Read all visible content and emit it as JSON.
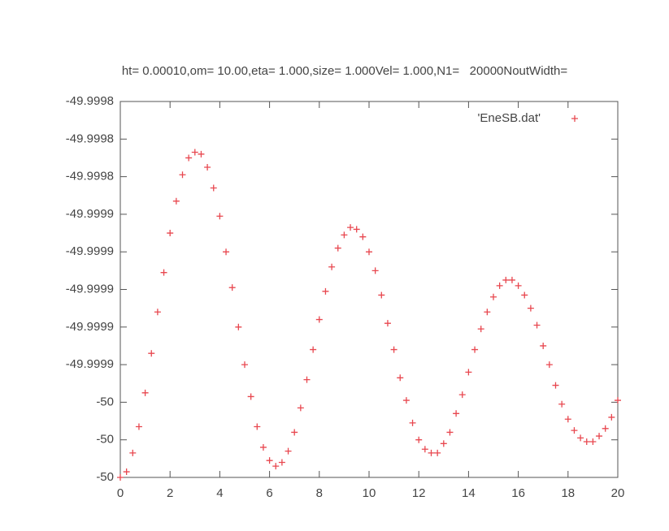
{
  "chart_data": {
    "type": "scatter",
    "title": "ht= 0.00010,om= 10.00,eta= 1.000,size= 1.000Vel= 1.000,N1=   20000NoutWidth=",
    "xlim": [
      0,
      20
    ],
    "xticks": [
      0,
      2,
      4,
      6,
      8,
      10,
      12,
      14,
      16,
      18,
      20
    ],
    "ylim": [
      -50,
      -49.9998
    ],
    "yticks": [
      -50,
      {
        "value": -49.99998,
        "label": "-50"
      },
      {
        "value": -49.99996,
        "label": "-50"
      },
      {
        "value": -49.99994,
        "label": "-49.9999"
      },
      {
        "value": -49.99992,
        "label": "-49.9999"
      },
      {
        "value": -49.9999,
        "label": "-49.9999"
      },
      {
        "value": -49.99988,
        "label": "-49.9999"
      },
      {
        "value": -49.99986,
        "label": "-49.9999"
      },
      {
        "value": -49.99984,
        "label": "-49.9998"
      },
      {
        "value": -49.99982,
        "label": "-49.9998"
      },
      -49.9998
    ],
    "legend": "upper right",
    "series": [
      {
        "name": "'EneSB.dat'",
        "color": "#e8474f",
        "marker": "+",
        "x": [
          0,
          0.25,
          0.5,
          0.75,
          1,
          1.25,
          1.5,
          1.75,
          2,
          2.25,
          2.5,
          2.75,
          3,
          3.25,
          3.5,
          3.75,
          4,
          4.25,
          4.5,
          4.75,
          5,
          5.25,
          5.5,
          5.75,
          6,
          6.25,
          6.5,
          6.75,
          7,
          7.25,
          7.5,
          7.75,
          8,
          8.25,
          8.5,
          8.75,
          9,
          9.25,
          9.5,
          9.75,
          10,
          10.25,
          10.5,
          10.75,
          11,
          11.25,
          11.5,
          11.75,
          12,
          12.25,
          12.5,
          12.75,
          13,
          13.25,
          13.5,
          13.75,
          14,
          14.25,
          14.5,
          14.75,
          15,
          15.25,
          15.5,
          15.75,
          16,
          16.25,
          16.5,
          16.75,
          17,
          17.25,
          17.5,
          17.75,
          18,
          18.25,
          18.5,
          18.75,
          19,
          19.25,
          19.5,
          19.75,
          20
        ],
        "values": [
          -50,
          -49.999997,
          -49.999987,
          -49.999973,
          -49.999955,
          -49.999934,
          -49.999912,
          -49.999891,
          -49.99987,
          -49.999853,
          -49.999839,
          -49.99983,
          -49.999827,
          -49.999828,
          -49.999835,
          -49.999846,
          -49.999861,
          -49.99988,
          -49.999899,
          -49.99992,
          -49.99994,
          -49.999957,
          -49.999973,
          -49.999984,
          -49.999991,
          -49.999994,
          -49.999992,
          -49.999986,
          -49.999976,
          -49.999963,
          -49.999948,
          -49.999932,
          -49.999916,
          -49.999901,
          -49.999888,
          -49.999878,
          -49.999871,
          -49.999867,
          -49.999868,
          -49.999872,
          -49.99988,
          -49.99989,
          -49.999903,
          -49.999918,
          -49.999932,
          -49.999947,
          -49.999959,
          -49.999971,
          -49.99998,
          -49.999985,
          -49.999987,
          -49.999987,
          -49.999982,
          -49.999976,
          -49.999966,
          -49.999956,
          -49.999944,
          -49.999932,
          -49.999921,
          -49.999912,
          -49.999904,
          -49.999898,
          -49.999895,
          -49.999895,
          -49.999898,
          -49.999903,
          -49.99991,
          -49.999919,
          -49.99993,
          -49.99994,
          -49.999951,
          -49.999961,
          -49.999969,
          -49.999975,
          -49.999979,
          -49.999981,
          -49.999981,
          -49.999978,
          -49.999974,
          -49.999968,
          -49.999959
        ]
      }
    ]
  }
}
